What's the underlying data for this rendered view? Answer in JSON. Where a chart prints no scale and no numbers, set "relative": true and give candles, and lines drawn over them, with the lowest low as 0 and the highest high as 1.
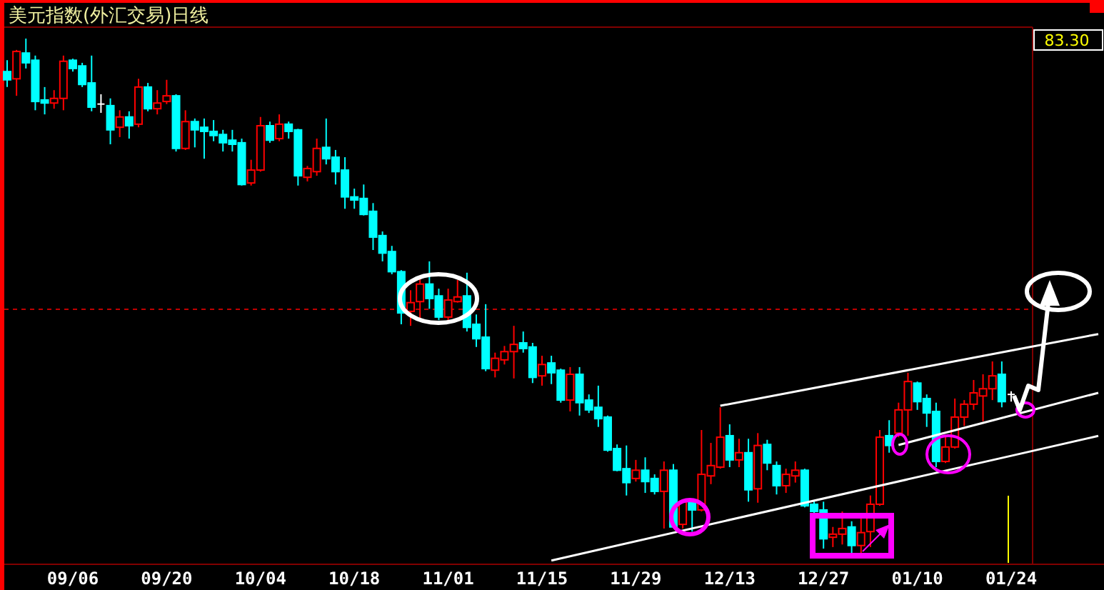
{
  "chart_data": {
    "type": "candlestick",
    "title": "美元指数(外汇交易)日线",
    "relative": true,
    "categories": [
      null,
      null,
      null,
      null,
      null,
      null,
      null,
      "09/06",
      null,
      null,
      null,
      null,
      null,
      null,
      null,
      null,
      null,
      "09/20",
      null,
      null,
      null,
      null,
      null,
      null,
      null,
      null,
      null,
      "10/04",
      null,
      null,
      null,
      null,
      null,
      null,
      null,
      null,
      null,
      "10/18",
      null,
      null,
      null,
      null,
      null,
      null,
      null,
      null,
      null,
      "11/01",
      null,
      null,
      null,
      null,
      null,
      null,
      null,
      null,
      null,
      "11/15",
      null,
      null,
      null,
      null,
      null,
      null,
      null,
      null,
      null,
      "11/29",
      null,
      null,
      null,
      null,
      null,
      null,
      null,
      null,
      null,
      "12/13",
      null,
      null,
      null,
      null,
      null,
      null,
      null,
      null,
      null,
      "12/27",
      null,
      null,
      null,
      null,
      null,
      null,
      null,
      null,
      null,
      "01/10",
      null,
      null,
      null,
      null,
      null,
      null,
      null,
      null,
      null,
      "01/24"
    ],
    "ohlc": [
      [
        0.936,
        0.958,
        0.906,
        0.92
      ],
      [
        0.922,
        0.978,
        0.889,
        0.975
      ],
      [
        0.972,
        1,
        0.942,
        0.953
      ],
      [
        0.958,
        0.967,
        0.861,
        0.878
      ],
      [
        0.881,
        0.906,
        0.853,
        0.875
      ],
      [
        0.875,
        0.9,
        0.864,
        0.884
      ],
      [
        0.884,
        0.967,
        0.861,
        0.956
      ],
      [
        0.958,
        0.961,
        0.936,
        0.942
      ],
      [
        0.947,
        0.953,
        0.906,
        0.911
      ],
      [
        0.914,
        0.967,
        0.859,
        0.867
      ],
      [
        0.873,
        0.892,
        0.856,
        0.873
      ],
      [
        0.87,
        0.884,
        0.795,
        0.823
      ],
      [
        0.828,
        0.861,
        0.809,
        0.848
      ],
      [
        0.848,
        0.859,
        0.806,
        0.831
      ],
      [
        0.834,
        0.922,
        0.828,
        0.906
      ],
      [
        0.906,
        0.914,
        0.859,
        0.864
      ],
      [
        0.864,
        0.9,
        0.853,
        0.875
      ],
      [
        0.878,
        0.92,
        0.873,
        0.889
      ],
      [
        0.889,
        0.892,
        0.781,
        0.787
      ],
      [
        0.787,
        0.861,
        0.784,
        0.839
      ],
      [
        0.839,
        0.845,
        0.789,
        0.823
      ],
      [
        0.828,
        0.845,
        0.767,
        0.82
      ],
      [
        0.82,
        0.842,
        0.801,
        0.812
      ],
      [
        0.814,
        0.823,
        0.781,
        0.798
      ],
      [
        0.803,
        0.823,
        0.781,
        0.795
      ],
      [
        0.798,
        0.806,
        0.715,
        0.717
      ],
      [
        0.72,
        0.765,
        0.715,
        0.745
      ],
      [
        0.745,
        0.848,
        0.742,
        0.831
      ],
      [
        0.831,
        0.839,
        0.798,
        0.803
      ],
      [
        0.806,
        0.853,
        0.801,
        0.834
      ],
      [
        0.834,
        0.839,
        0.806,
        0.82
      ],
      [
        0.823,
        0.825,
        0.715,
        0.734
      ],
      [
        0.731,
        0.753,
        0.723,
        0.748
      ],
      [
        0.742,
        0.806,
        0.734,
        0.787
      ],
      [
        0.789,
        0.845,
        0.756,
        0.767
      ],
      [
        0.77,
        0.784,
        0.717,
        0.742
      ],
      [
        0.745,
        0.77,
        0.67,
        0.693
      ],
      [
        0.693,
        0.709,
        0.67,
        0.687
      ],
      [
        0.69,
        0.717,
        0.657,
        0.659
      ],
      [
        0.665,
        0.681,
        0.59,
        0.615
      ],
      [
        0.618,
        0.626,
        0.568,
        0.584
      ],
      [
        0.587,
        0.598,
        0.543,
        0.548
      ],
      [
        0.548,
        0.551,
        0.446,
        0.468
      ],
      [
        0.471,
        0.512,
        0.443,
        0.488
      ],
      [
        0.49,
        0.537,
        0.457,
        0.524
      ],
      [
        0.524,
        0.568,
        0.476,
        0.496
      ],
      [
        0.501,
        0.515,
        0.454,
        0.46
      ],
      [
        0.46,
        0.515,
        0.454,
        0.493
      ],
      [
        0.49,
        0.532,
        0.488,
        0.499
      ],
      [
        0.501,
        0.546,
        0.432,
        0.44
      ],
      [
        0.446,
        0.465,
        0.402,
        0.418
      ],
      [
        0.421,
        0.485,
        0.355,
        0.36
      ],
      [
        0.357,
        0.391,
        0.343,
        0.38
      ],
      [
        0.377,
        0.404,
        0.368,
        0.393
      ],
      [
        0.393,
        0.443,
        0.341,
        0.407
      ],
      [
        0.41,
        0.432,
        0.391,
        0.399
      ],
      [
        0.402,
        0.41,
        0.332,
        0.343
      ],
      [
        0.346,
        0.385,
        0.327,
        0.368
      ],
      [
        0.371,
        0.385,
        0.33,
        0.352
      ],
      [
        0.357,
        0.36,
        0.294,
        0.299
      ],
      [
        0.299,
        0.363,
        0.277,
        0.349
      ],
      [
        0.349,
        0.363,
        0.269,
        0.294
      ],
      [
        0.299,
        0.31,
        0.274,
        0.28
      ],
      [
        0.285,
        0.327,
        0.247,
        0.263
      ],
      [
        0.266,
        0.269,
        0.199,
        0.202
      ],
      [
        0.205,
        0.213,
        0.161,
        0.163
      ],
      [
        0.166,
        0.211,
        0.114,
        0.139
      ],
      [
        0.147,
        0.183,
        0.141,
        0.163
      ],
      [
        0.163,
        0.188,
        0.119,
        0.141
      ],
      [
        0.147,
        0.155,
        0.116,
        0.122
      ],
      [
        0.122,
        0.18,
        0.05,
        0.163
      ],
      [
        0.163,
        0.175,
        0.053,
        0.053
      ],
      [
        0.058,
        0.105,
        0.05,
        0.102
      ],
      [
        0.102,
        0.105,
        0.044,
        0.086
      ],
      [
        0.086,
        0.241,
        0.083,
        0.155
      ],
      [
        0.152,
        0.216,
        0.136,
        0.172
      ],
      [
        0.169,
        0.285,
        0.166,
        0.227
      ],
      [
        0.23,
        0.252,
        0.169,
        0.183
      ],
      [
        0.183,
        0.224,
        0.169,
        0.197
      ],
      [
        0.197,
        0.224,
        0.102,
        0.125
      ],
      [
        0.127,
        0.235,
        0.1,
        0.211
      ],
      [
        0.213,
        0.222,
        0.163,
        0.177
      ],
      [
        0.172,
        0.18,
        0.116,
        0.133
      ],
      [
        0.133,
        0.166,
        0.119,
        0.155
      ],
      [
        0.152,
        0.18,
        0.139,
        0.163
      ],
      [
        0.163,
        0.166,
        0.091,
        0.094
      ],
      [
        0.097,
        0.105,
        0.078,
        0.083
      ],
      [
        0.086,
        0.102,
        0.011,
        0.03
      ],
      [
        0.033,
        0.053,
        0.014,
        0.039
      ],
      [
        0.039,
        0.083,
        0.019,
        0.05
      ],
      [
        0.053,
        0.064,
        0,
        0.017
      ],
      [
        0.017,
        0.069,
        0,
        0.042
      ],
      [
        0.044,
        0.114,
        0.014,
        0.097
      ],
      [
        0.097,
        0.241,
        0.094,
        0.227
      ],
      [
        0.23,
        0.26,
        0.197,
        0.211
      ],
      [
        0.235,
        0.294,
        0.227,
        0.28
      ],
      [
        0.28,
        0.352,
        0.23,
        0.335
      ],
      [
        0.332,
        0.335,
        0.28,
        0.296
      ],
      [
        0.302,
        0.31,
        0.247,
        0.274
      ],
      [
        0.277,
        0.294,
        0.169,
        0.18
      ],
      [
        0.18,
        0.227,
        0.177,
        0.208
      ],
      [
        0.208,
        0.302,
        0.205,
        0.266
      ],
      [
        0.266,
        0.299,
        0.249,
        0.291
      ],
      [
        0.291,
        0.338,
        0.28,
        0.313
      ],
      [
        0.307,
        0.349,
        0.258,
        0.321
      ],
      [
        0.321,
        0.374,
        0.299,
        0.346
      ],
      [
        0.349,
        0.374,
        0.285,
        0.296
      ],
      [
        0.31,
        0.316,
        0.296,
        0.31
      ]
    ],
    "colors": [
      "#00ffff",
      "#ff0000",
      "#00ffff",
      "#00ffff",
      "#00ffff",
      "#ff0000",
      "#ff0000",
      "#00ffff",
      "#00ffff",
      "#00ffff",
      "#ffffff",
      "#00ffff",
      "#ff0000",
      "#00ffff",
      "#ff0000",
      "#00ffff",
      "#ff0000",
      "#ff0000",
      "#00ffff",
      "#ff0000",
      "#00ffff",
      "#00ffff",
      "#00ffff",
      "#00ffff",
      "#00ffff",
      "#00ffff",
      "#ff0000",
      "#ff0000",
      "#00ffff",
      "#ff0000",
      "#00ffff",
      "#00ffff",
      "#ff0000",
      "#ff0000",
      "#00ffff",
      "#00ffff",
      "#00ffff",
      "#00ffff",
      "#00ffff",
      "#00ffff",
      "#00ffff",
      "#00ffff",
      "#00ffff",
      "#ff0000",
      "#ff0000",
      "#00ffff",
      "#00ffff",
      "#ff0000",
      "#ff0000",
      "#00ffff",
      "#00ffff",
      "#00ffff",
      "#ff0000",
      "#ff0000",
      "#ff0000",
      "#00ffff",
      "#00ffff",
      "#ff0000",
      "#00ffff",
      "#00ffff",
      "#ff0000",
      "#00ffff",
      "#00ffff",
      "#00ffff",
      "#00ffff",
      "#00ffff",
      "#00ffff",
      "#ff0000",
      "#00ffff",
      "#00ffff",
      "#ff0000",
      "#00ffff",
      "#ff0000",
      "#00ffff",
      "#ff0000",
      "#ff0000",
      "#ff0000",
      "#00ffff",
      "#ff0000",
      "#00ffff",
      "#ff0000",
      "#00ffff",
      "#00ffff",
      "#ff0000",
      "#ff0000",
      "#00ffff",
      "#00ffff",
      "#00ffff",
      "#ff0000",
      "#ff0000",
      "#00ffff",
      "#ff0000",
      "#ff0000",
      "#ff0000",
      "#00ffff",
      "#ff0000",
      "#ff0000",
      "#00ffff",
      "#00ffff",
      "#00ffff",
      "#ff0000",
      "#ff0000",
      "#ff0000",
      "#ff0000",
      "#ff0000",
      "#ff0000",
      "#00ffff",
      "#ffffff"
    ],
    "series": [
      {
        "type": "line",
        "color": "#ffffff",
        "values": [
          null,
          null,
          null,
          null,
          null,
          null,
          null,
          null,
          null,
          null,
          null,
          null,
          null,
          null,
          null,
          null,
          null,
          null,
          null,
          null,
          null,
          null,
          null,
          null,
          null,
          null,
          null,
          null,
          null,
          null,
          null,
          null,
          null,
          null,
          null,
          null,
          null,
          null,
          null,
          null,
          null,
          null,
          null,
          null,
          null,
          null,
          null,
          null,
          null,
          null,
          null,
          null,
          null,
          null,
          null,
          null,
          null,
          null,
          -0.012,
          null,
          null,
          null,
          null,
          null,
          null,
          null,
          null,
          null,
          null,
          null,
          null,
          null,
          null,
          null,
          null,
          null,
          null,
          null,
          null,
          null,
          null,
          null,
          null,
          null,
          null,
          null,
          null,
          null,
          null,
          null,
          null,
          null,
          null,
          null,
          null,
          null,
          null,
          null,
          null,
          null,
          null,
          null,
          null,
          null,
          null,
          null,
          null,
          0.191
        ]
      },
      {
        "type": "line",
        "color": "#ffffff",
        "values": [
          null,
          null,
          null,
          null,
          null,
          null,
          null,
          null,
          null,
          null,
          null,
          null,
          null,
          null,
          null,
          null,
          null,
          null,
          null,
          null,
          null,
          null,
          null,
          null,
          null,
          null,
          null,
          null,
          null,
          null,
          null,
          null,
          null,
          null,
          null,
          null,
          null,
          null,
          null,
          null,
          null,
          null,
          null,
          null,
          null,
          null,
          null,
          null,
          null,
          null,
          null,
          null,
          null,
          null,
          null,
          null,
          null,
          null,
          null,
          null,
          null,
          null,
          null,
          null,
          null,
          null,
          null,
          null,
          null,
          null,
          null,
          null,
          null,
          null,
          null,
          null,
          null,
          null,
          null,
          null,
          null,
          null,
          null,
          null,
          null,
          null,
          null,
          null,
          null,
          null,
          null,
          null,
          null,
          null,
          null,
          0.212,
          null,
          null,
          null,
          null,
          null,
          null,
          null,
          null,
          null,
          null,
          null,
          0.269
        ]
      },
      {
        "type": "line",
        "color": "#ffffff",
        "values": [
          null,
          null,
          null,
          null,
          null,
          null,
          null,
          null,
          null,
          null,
          null,
          null,
          null,
          null,
          null,
          null,
          null,
          null,
          null,
          null,
          null,
          null,
          null,
          null,
          null,
          null,
          null,
          null,
          null,
          null,
          null,
          null,
          null,
          null,
          null,
          null,
          null,
          null,
          null,
          null,
          null,
          null,
          null,
          null,
          null,
          null,
          null,
          null,
          null,
          null,
          null,
          null,
          null,
          null,
          null,
          null,
          null,
          null,
          null,
          null,
          null,
          null,
          null,
          null,
          null,
          null,
          null,
          null,
          null,
          null,
          null,
          null,
          null,
          null,
          null,
          null,
          0.288,
          null,
          null,
          null,
          null,
          null,
          null,
          null,
          null,
          null,
          null,
          null,
          null,
          null,
          null,
          null,
          null,
          null,
          null,
          null,
          null,
          null,
          null,
          null,
          null,
          null,
          null,
          null,
          null,
          null,
          null,
          0.395
        ]
      }
    ],
    "ref_lines": [
      {
        "axis": "y",
        "value": 0.475,
        "color": "#c00000",
        "line_style": "dashed"
      }
    ],
    "annotations": [
      "83.30"
    ]
  }
}
